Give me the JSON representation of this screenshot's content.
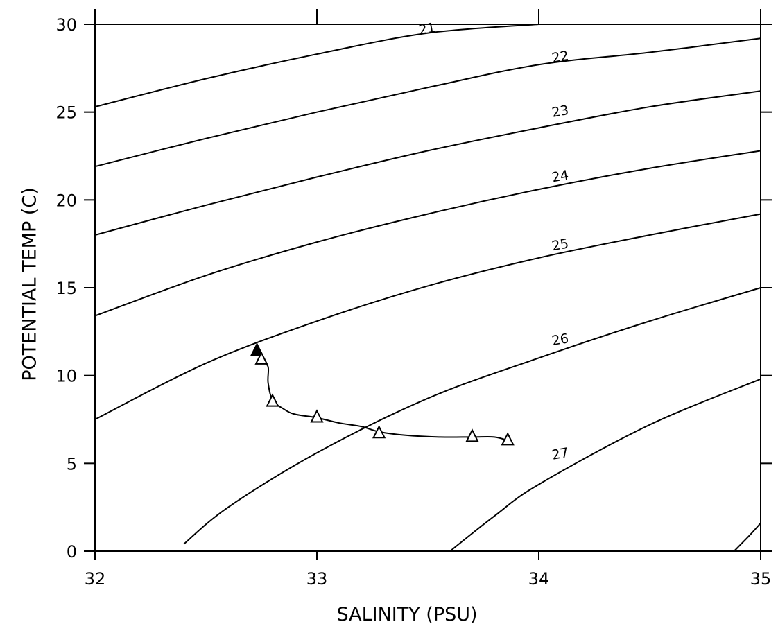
{
  "chart_data": {
    "type": "line",
    "xlabel": "SALINITY (PSU)",
    "ylabel": "POTENTIAL TEMP (C)",
    "xlim": [
      32,
      35
    ],
    "ylim": [
      0,
      30
    ],
    "xticks": [
      32,
      33,
      34,
      35
    ],
    "xtick_labels": [
      "32",
      "33",
      "34",
      "35"
    ],
    "yticks": [
      0,
      5,
      10,
      15,
      20,
      25,
      30
    ],
    "ytick_labels": [
      "0",
      "5",
      "10",
      "15",
      "20",
      "25",
      "30"
    ],
    "grid": false,
    "isopycnals": [
      {
        "name": "21",
        "points": [
          [
            32,
            25.3
          ],
          [
            32.5,
            26.9
          ],
          [
            33,
            28.3
          ],
          [
            33.5,
            29.5
          ],
          [
            34,
            30
          ]
        ],
        "label_at": [
          33.5,
          29.5
        ]
      },
      {
        "name": "22",
        "points": [
          [
            32,
            21.9
          ],
          [
            32.5,
            23.5
          ],
          [
            33,
            25.0
          ],
          [
            33.5,
            26.4
          ],
          [
            34,
            27.7
          ],
          [
            34.5,
            28.4
          ],
          [
            35,
            29.2
          ]
        ],
        "label_at": [
          34.1,
          27.9
        ]
      },
      {
        "name": "23",
        "points": [
          [
            32,
            18.0
          ],
          [
            32.5,
            19.7
          ],
          [
            33,
            21.3
          ],
          [
            33.5,
            22.8
          ],
          [
            34,
            24.1
          ],
          [
            34.5,
            25.3
          ],
          [
            35,
            26.2
          ]
        ],
        "label_at": [
          34.1,
          24.8
        ]
      },
      {
        "name": "24",
        "points": [
          [
            32,
            13.4
          ],
          [
            32.5,
            15.7
          ],
          [
            33,
            17.6
          ],
          [
            33.5,
            19.2
          ],
          [
            34,
            20.6
          ],
          [
            34.5,
            21.8
          ],
          [
            35,
            22.8
          ]
        ],
        "label_at": [
          34.1,
          21.1
        ]
      },
      {
        "name": "25",
        "points": [
          [
            32,
            7.5
          ],
          [
            32.5,
            10.7
          ],
          [
            33,
            13.1
          ],
          [
            33.5,
            15.1
          ],
          [
            34,
            16.7
          ],
          [
            34.5,
            18.0
          ],
          [
            35,
            19.2
          ]
        ],
        "label_at": [
          34.1,
          17.2
        ]
      },
      {
        "name": "26",
        "points": [
          [
            32.4,
            0.4
          ],
          [
            32.6,
            2.5
          ],
          [
            33,
            5.6
          ],
          [
            33.5,
            8.7
          ],
          [
            34,
            11.0
          ],
          [
            34.5,
            13.1
          ],
          [
            35,
            15.0
          ]
        ],
        "label_at": [
          34.1,
          11.8
        ]
      },
      {
        "name": "27",
        "points": [
          [
            33.6,
            0.0
          ],
          [
            33.8,
            2.0
          ],
          [
            34,
            3.8
          ],
          [
            34.5,
            7.2
          ],
          [
            35,
            9.8
          ]
        ],
        "label_at": [
          34.1,
          5.3
        ]
      },
      {
        "name": "",
        "points": [
          [
            34.88,
            0.0
          ],
          [
            34.95,
            0.9
          ],
          [
            35,
            1.6
          ]
        ],
        "label_at": null
      }
    ],
    "series": [
      {
        "type": "line",
        "points": [
          [
            32.73,
            11.4
          ],
          [
            32.75,
            10.9
          ],
          [
            32.78,
            10.5
          ],
          [
            32.78,
            9.6
          ],
          [
            32.8,
            8.6
          ],
          [
            32.85,
            8.1
          ],
          [
            32.9,
            7.8
          ],
          [
            33.0,
            7.6
          ],
          [
            33.1,
            7.3
          ],
          [
            33.2,
            7.1
          ],
          [
            33.28,
            6.8
          ],
          [
            33.4,
            6.6
          ],
          [
            33.55,
            6.5
          ],
          [
            33.7,
            6.5
          ],
          [
            33.8,
            6.5
          ],
          [
            33.86,
            6.3
          ]
        ],
        "markers": [
          {
            "x": 32.73,
            "y": 11.4,
            "filled": true
          },
          {
            "x": 32.75,
            "y": 10.9,
            "filled": false
          },
          {
            "x": 32.8,
            "y": 8.5,
            "filled": false
          },
          {
            "x": 33.0,
            "y": 7.6,
            "filled": false
          },
          {
            "x": 33.28,
            "y": 6.7,
            "filled": false
          },
          {
            "x": 33.7,
            "y": 6.5,
            "filled": false
          },
          {
            "x": 33.86,
            "y": 6.3,
            "filled": false
          }
        ]
      }
    ]
  }
}
